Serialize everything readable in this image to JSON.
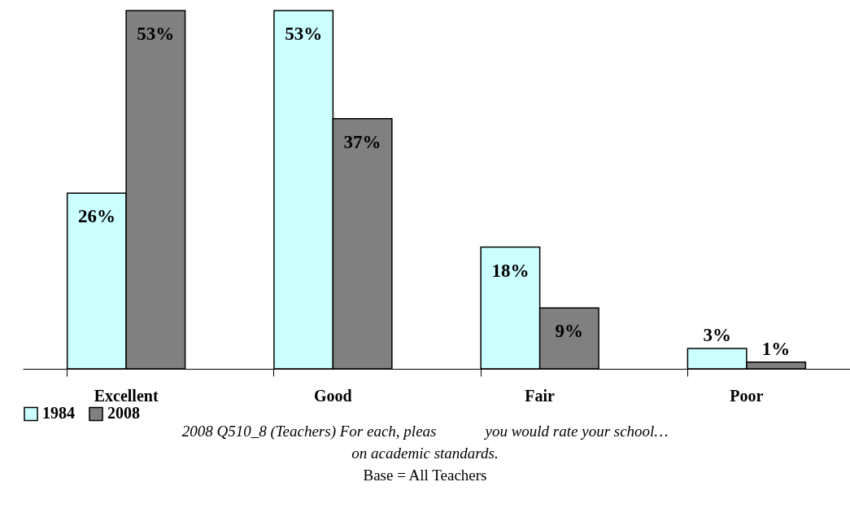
{
  "chart_data": {
    "type": "bar",
    "categories": [
      "Excellent",
      "Good",
      "Fair",
      "Poor"
    ],
    "series": [
      {
        "name": "1984",
        "color": "#ccffff",
        "values": [
          26,
          53,
          18,
          3
        ],
        "value_labels": [
          "26%",
          "53%",
          "18%",
          "3%"
        ]
      },
      {
        "name": "2008",
        "color": "#808080",
        "values": [
          53,
          37,
          9,
          1
        ],
        "value_labels": [
          "53%",
          "37%",
          "9%",
          "1%"
        ]
      }
    ],
    "relative": false,
    "legend": "bottom",
    "grid": false,
    "annotations": [
      "2008 Q510_8 (Teachers) For each, pleas",
      "you would rate your school…",
      "on  academic standards.",
      "Base = All Teachers"
    ]
  }
}
